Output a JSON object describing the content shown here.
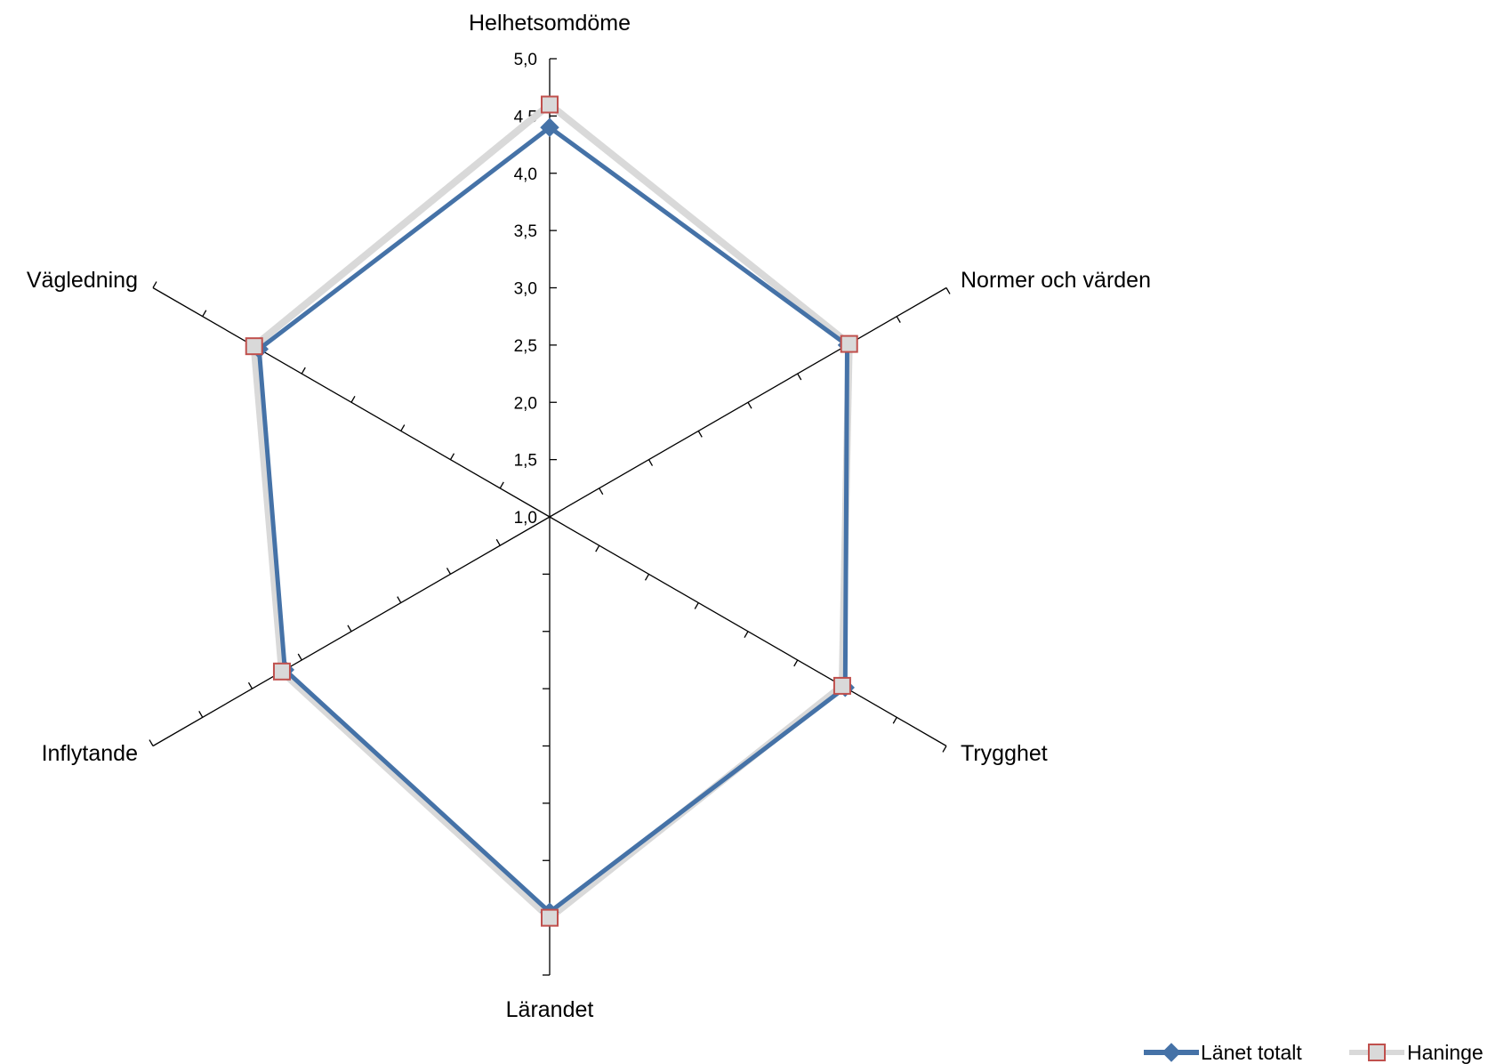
{
  "chart_data": {
    "type": "radar",
    "categories": [
      "Helhetsomdöme",
      "Normer och värden",
      "Trygghet",
      "Lärandet",
      "Inflytande",
      "Vägledning"
    ],
    "rlim": [
      1.0,
      5.0
    ],
    "tick_labels": [
      "1,0",
      "1,5",
      "2,0",
      "2,5",
      "3,0",
      "3,5",
      "4,0",
      "4,5",
      "5,0"
    ],
    "grid": false,
    "legend_position": "bottom-right",
    "series": [
      {
        "name": "Länet totalt",
        "values": [
          4.4,
          4.0,
          3.98,
          4.45,
          3.67,
          3.93
        ],
        "color": "#4572A7",
        "marker": "diamond"
      },
      {
        "name": "Haninge",
        "values": [
          4.6,
          4.02,
          3.95,
          4.5,
          3.7,
          3.98
        ],
        "color": "#D9D9D9",
        "marker_edge": "#C0504D",
        "marker": "square"
      }
    ]
  }
}
